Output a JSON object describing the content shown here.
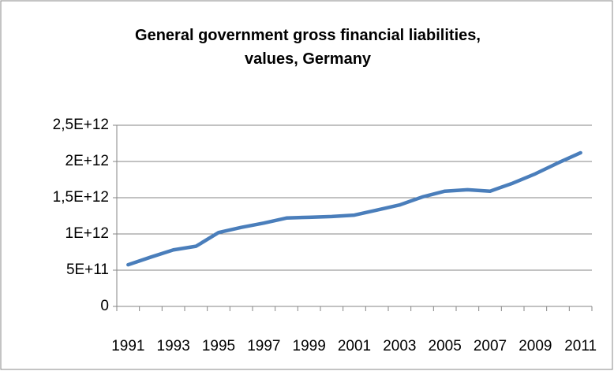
{
  "chart_data": {
    "type": "line",
    "title": "General government gross financial liabilities, values, Germany",
    "categories": [
      "1991",
      null,
      "1993",
      null,
      "1995",
      null,
      "1997",
      null,
      "1999",
      null,
      "2001",
      null,
      "2003",
      null,
      "2005",
      null,
      "2007",
      null,
      "2009",
      null,
      "2011"
    ],
    "series": [
      {
        "name": "Germany",
        "color": "#4a7ebb",
        "values": [
          575000000000,
          680000000000,
          780000000000,
          830000000000,
          1020000000000,
          1090000000000,
          1150000000000,
          1220000000000,
          1230000000000,
          1240000000000,
          1260000000000,
          1330000000000,
          1400000000000,
          1510000000000,
          1590000000000,
          1610000000000,
          1590000000000,
          1700000000000,
          1830000000000,
          1980000000000,
          2120000000000
        ]
      }
    ],
    "ylim": [
      0,
      2500000000000
    ],
    "yticks": [
      0,
      {
        "value": 500000000000,
        "label": "5E+11"
      },
      {
        "value": 1000000000000,
        "label": "1E+12"
      },
      {
        "value": 1500000000000,
        "label": "1,5E+12"
      },
      {
        "value": 2000000000000,
        "label": "2E+12"
      },
      {
        "value": 2500000000000,
        "label": "2,5E+12"
      }
    ],
    "grid": true
  }
}
